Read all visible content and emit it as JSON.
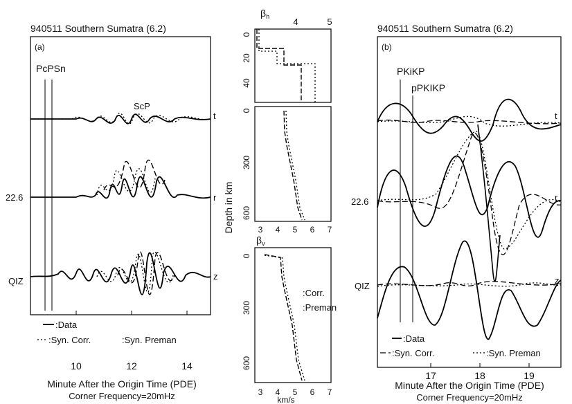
{
  "left_panel": {
    "title": "940511 Southern Sumatra  (6.2)",
    "panel_label": "(a)",
    "phase_pcpsn": "PcPSn",
    "phase_scp": "ScP",
    "comp_t": "t",
    "comp_r": "r",
    "comp_z": "z",
    "distance": "22.6",
    "station": "QIZ",
    "legend_data": ":Data",
    "legend_syn_corr": ":Syn. Corr.",
    "legend_syn_preman": ":Syn. Preman",
    "xticks": [
      "10",
      "12",
      "14"
    ],
    "xlabel": "Minute After the Origin Time (PDE)",
    "caption": "Corner Frequency=20mHz"
  },
  "right_panel": {
    "title": "940511 Southern Sumatra  (6.2)",
    "panel_label": "(b)",
    "phase_pkikp": "PKiKP",
    "phase_ppkikp": "pPKIKP",
    "comp_t": "t",
    "comp_r": "r",
    "comp_z": "z",
    "distance": "22.6",
    "station": "QIZ",
    "legend_data": ":Data",
    "legend_syn_corr": ":Syn. Corr.",
    "legend_syn_preman": ":Syn. Preman",
    "xticks": [
      "17",
      "18",
      "19"
    ],
    "xlabel": "Minute After the Origin Time (PDE)",
    "caption": "Corner Frequency=20mHz"
  },
  "middle_panel": {
    "beta_h_label": "βh",
    "beta_v_label": "βv",
    "top_xticks": [
      "4",
      "5"
    ],
    "top_yticks": [
      "0",
      "20",
      "40"
    ],
    "mid_yticks": [
      "0",
      "300",
      "600"
    ],
    "bot_yticks": [
      "0",
      "300",
      "600"
    ],
    "bottom_xticks": [
      "3",
      "4",
      "5",
      "6",
      "7"
    ],
    "ylabel": "Depth in km",
    "xlabel": "km/s",
    "legend_corr": ":Corr.",
    "legend_preman": ":Preman"
  },
  "chart_data": [
    {
      "type": "line",
      "title": "940511 Southern Sumatra  (6.2)",
      "xlabel": "Minute After the Origin Time (PDE)",
      "xlim": [
        8.5,
        15
      ],
      "xticks": [
        10,
        12,
        14
      ],
      "series_names": [
        "Data",
        "Syn. Corr.",
        "Syn. Preman"
      ],
      "components": [
        "t",
        "r",
        "z"
      ],
      "markers": [
        {
          "label": "PcPSn",
          "x": 9.2
        },
        {
          "label": "ScP",
          "x": 12.0
        }
      ]
    },
    {
      "type": "line",
      "xlabel": "km/s",
      "ylabel": "Depth in km",
      "panels": [
        {
          "label": "βh",
          "xlim": [
            3,
            5
          ],
          "ylim": [
            0,
            60
          ],
          "series": [
            {
              "name": "Corr.",
              "x": [
                3.1,
                3.1,
                3.9,
                3.9,
                4.75,
                4.75,
                4.75
              ],
              "y": [
                0,
                17,
                17,
                31,
                31,
                55,
                60
              ]
            },
            {
              "name": "Preman",
              "x": [
                3.15,
                3.15,
                4.1,
                4.1,
                4.85,
                4.85,
                4.85
              ],
              "y": [
                0,
                20,
                20,
                28,
                28,
                55,
                60
              ]
            }
          ]
        },
        {
          "label": "",
          "xlim": [
            2.5,
            7
          ],
          "ylim": [
            0,
            700
          ],
          "series": [
            {
              "name": "Corr.",
              "x": [
                4.6,
                4.6,
                4.8,
                5.3,
                5.5,
                5.8
              ],
              "y": [
                40,
                150,
                210,
                400,
                620,
                690
              ]
            },
            {
              "name": "Preman",
              "x": [
                4.7,
                4.7,
                4.9,
                5.4,
                5.6,
                5.9
              ],
              "y": [
                40,
                150,
                210,
                400,
                620,
                690
              ]
            }
          ]
        },
        {
          "label": "βv",
          "xlim": [
            2.5,
            7
          ],
          "ylim": [
            0,
            700
          ],
          "series": [
            {
              "name": "Corr.",
              "x": [
                3.5,
                4.5,
                4.55,
                4.7,
                5.2,
                5.4,
                5.8
              ],
              "y": [
                0,
                20,
                150,
                210,
                420,
                620,
                690
              ]
            },
            {
              "name": "Preman",
              "x": [
                3.5,
                4.6,
                4.65,
                4.8,
                5.3,
                5.5,
                5.9
              ],
              "y": [
                0,
                20,
                150,
                210,
                420,
                620,
                690
              ]
            }
          ]
        }
      ]
    },
    {
      "type": "line",
      "title": "940511 Southern Sumatra  (6.2)",
      "xlabel": "Minute After the Origin Time (PDE)",
      "xlim": [
        16.5,
        19.8
      ],
      "xticks": [
        17,
        18,
        19
      ],
      "series_names": [
        "Data",
        "Syn. Corr.",
        "Syn. Preman"
      ],
      "components": [
        "t",
        "r",
        "z"
      ],
      "markers": [
        {
          "label": "PKiKP",
          "x": 16.85
        },
        {
          "label": "pPKIKP",
          "x": 17.05
        }
      ]
    }
  ]
}
